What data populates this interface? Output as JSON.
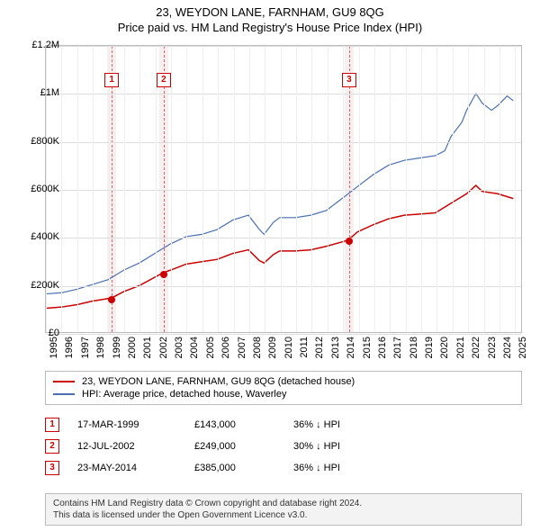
{
  "title": {
    "line1": "23, WEYDON LANE, FARNHAM, GU9 8QG",
    "line2": "Price paid vs. HM Land Registry's House Price Index (HPI)"
  },
  "chart": {
    "type": "line",
    "background_color": "#ffffff",
    "grid_color": "#dddddd",
    "border_color": "#bbbbbb",
    "x": {
      "min": 1995,
      "max": 2025.5,
      "ticks": [
        1995,
        1996,
        1997,
        1998,
        1999,
        2000,
        2001,
        2002,
        2003,
        2004,
        2005,
        2006,
        2007,
        2008,
        2009,
        2010,
        2011,
        2012,
        2013,
        2014,
        2015,
        2016,
        2017,
        2018,
        2019,
        2020,
        2021,
        2022,
        2023,
        2024,
        2025
      ]
    },
    "y": {
      "min": 0,
      "max": 1200000,
      "ticks": [
        0,
        200000,
        400000,
        600000,
        800000,
        1000000,
        1200000
      ],
      "tick_labels": [
        "£0",
        "£200K",
        "£400K",
        "£600K",
        "£800K",
        "£1M",
        "£1.2M"
      ]
    },
    "series": {
      "hpi": {
        "label": "HPI: Average price, detached house, Waverley",
        "color": "#4a6fb3",
        "width": 1.2,
        "points": [
          [
            1995,
            160000
          ],
          [
            1996,
            165000
          ],
          [
            1997,
            180000
          ],
          [
            1998,
            200000
          ],
          [
            1999,
            220000
          ],
          [
            2000,
            260000
          ],
          [
            2001,
            290000
          ],
          [
            2002,
            330000
          ],
          [
            2003,
            370000
          ],
          [
            2004,
            400000
          ],
          [
            2005,
            410000
          ],
          [
            2006,
            430000
          ],
          [
            2007,
            470000
          ],
          [
            2008,
            490000
          ],
          [
            2008.7,
            430000
          ],
          [
            2009,
            410000
          ],
          [
            2009.6,
            460000
          ],
          [
            2010,
            480000
          ],
          [
            2011,
            480000
          ],
          [
            2012,
            490000
          ],
          [
            2013,
            510000
          ],
          [
            2014,
            560000
          ],
          [
            2015,
            610000
          ],
          [
            2016,
            660000
          ],
          [
            2017,
            700000
          ],
          [
            2018,
            720000
          ],
          [
            2019,
            730000
          ],
          [
            2020,
            740000
          ],
          [
            2020.6,
            760000
          ],
          [
            2021,
            820000
          ],
          [
            2021.7,
            880000
          ],
          [
            2022,
            930000
          ],
          [
            2022.6,
            1000000
          ],
          [
            2023,
            960000
          ],
          [
            2023.6,
            930000
          ],
          [
            2024,
            950000
          ],
          [
            2024.6,
            990000
          ],
          [
            2025,
            970000
          ]
        ]
      },
      "price_paid": {
        "label": "23, WEYDON LANE, FARNHAM, GU9 8QG (detached house)",
        "color": "#cc0000",
        "width": 1.5,
        "points": [
          [
            1995,
            100000
          ],
          [
            1996,
            105000
          ],
          [
            1997,
            115000
          ],
          [
            1998,
            130000
          ],
          [
            1999.21,
            143000
          ],
          [
            2000,
            170000
          ],
          [
            2001,
            195000
          ],
          [
            2002.53,
            249000
          ],
          [
            2003,
            260000
          ],
          [
            2004,
            285000
          ],
          [
            2005,
            295000
          ],
          [
            2006,
            305000
          ],
          [
            2007,
            330000
          ],
          [
            2008,
            345000
          ],
          [
            2008.7,
            300000
          ],
          [
            2009,
            290000
          ],
          [
            2009.6,
            325000
          ],
          [
            2010,
            340000
          ],
          [
            2011,
            340000
          ],
          [
            2012,
            345000
          ],
          [
            2013,
            360000
          ],
          [
            2014.39,
            385000
          ],
          [
            2015,
            420000
          ],
          [
            2016,
            450000
          ],
          [
            2017,
            475000
          ],
          [
            2018,
            490000
          ],
          [
            2019,
            495000
          ],
          [
            2020,
            500000
          ],
          [
            2021,
            540000
          ],
          [
            2022,
            580000
          ],
          [
            2022.6,
            615000
          ],
          [
            2023,
            590000
          ],
          [
            2024,
            580000
          ],
          [
            2025,
            560000
          ]
        ]
      }
    },
    "sales_bands": {
      "color": "#f8f0f0",
      "line_color": "#d66",
      "half_width_years": 0.3
    },
    "marker_dot": {
      "color": "#cc0000",
      "radius": 4
    }
  },
  "legend": {
    "items": [
      {
        "color": "#cc0000",
        "label": "23, WEYDON LANE, FARNHAM, GU9 8QG (detached house)"
      },
      {
        "color": "#4a6fb3",
        "label": "HPI: Average price, detached house, Waverley"
      }
    ]
  },
  "sales": [
    {
      "idx": "1",
      "year": 1999.21,
      "date": "17-MAR-1999",
      "price_num": 143000,
      "price": "£143,000",
      "diff": "36% ↓ HPI"
    },
    {
      "idx": "2",
      "year": 2002.53,
      "date": "12-JUL-2002",
      "price_num": 249000,
      "price": "£249,000",
      "diff": "30% ↓ HPI"
    },
    {
      "idx": "3",
      "year": 2014.39,
      "date": "23-MAY-2014",
      "price_num": 385000,
      "price": "£385,000",
      "diff": "36% ↓ HPI"
    }
  ],
  "attribution": {
    "line1": "Contains HM Land Registry data © Crown copyright and database right 2024.",
    "line2": "This data is licensed under the Open Government Licence v3.0."
  }
}
